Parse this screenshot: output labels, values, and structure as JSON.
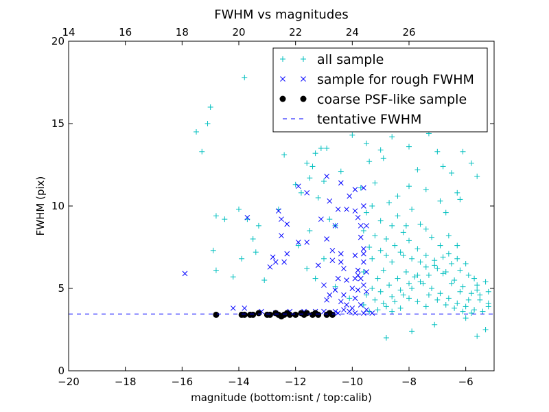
{
  "chart_data": {
    "type": "scatter",
    "title": "FWHM vs magnitudes",
    "xlabel": "magnitude (bottom:isnt / top:calib)",
    "ylabel": "FWHM (pix)",
    "xlim": [
      -20,
      -5
    ],
    "ylim": [
      0,
      20
    ],
    "x_ticks": [
      -20,
      -18,
      -16,
      -14,
      -12,
      -10,
      -8,
      -6
    ],
    "x_tick_labels": [
      "−20",
      "−18",
      "−16",
      "−14",
      "−12",
      "−10",
      "−8",
      "−6"
    ],
    "y_ticks": [
      0,
      5,
      10,
      15,
      20
    ],
    "y_tick_labels": [
      "0",
      "5",
      "10",
      "15",
      "20"
    ],
    "top_axis": {
      "offset": 34,
      "ticks": [
        14,
        16,
        18,
        20,
        22,
        24,
        26
      ],
      "tick_labels": [
        "14",
        "16",
        "18",
        "20",
        "22",
        "24",
        "26"
      ]
    },
    "grid": false,
    "legend_position": "top-right",
    "series": [
      {
        "name": "all sample",
        "marker": "+",
        "color": "#00bfbf",
        "points": [
          [
            -13.8,
            17.8
          ],
          [
            -15.0,
            16.0
          ],
          [
            -15.5,
            14.5
          ],
          [
            -15.1,
            15.0
          ],
          [
            -15.3,
            13.3
          ],
          [
            -14.8,
            9.4
          ],
          [
            -14.0,
            9.8
          ],
          [
            -14.5,
            9.2
          ],
          [
            -13.7,
            9.2
          ],
          [
            -13.3,
            8.8
          ],
          [
            -13.5,
            8.0
          ],
          [
            -14.9,
            7.3
          ],
          [
            -14.8,
            6.1
          ],
          [
            -13.9,
            6.8
          ],
          [
            -14.2,
            5.7
          ],
          [
            -13.1,
            5.5
          ],
          [
            -13.4,
            7.2
          ],
          [
            -12.6,
            9.8
          ],
          [
            -12.0,
            17.2
          ],
          [
            -12.4,
            15.6
          ],
          [
            -12.4,
            13.1
          ],
          [
            -11.6,
            12.6
          ],
          [
            -11.3,
            13.2
          ],
          [
            -11.1,
            13.5
          ],
          [
            -11.5,
            11.7
          ],
          [
            -11.4,
            12.4
          ],
          [
            -10.9,
            13.5
          ],
          [
            -10.8,
            17.7
          ],
          [
            -10.5,
            18.8
          ],
          [
            -10.3,
            17.8
          ],
          [
            -10.2,
            15.2
          ],
          [
            -10.0,
            14.3
          ],
          [
            -10.4,
            12.1
          ],
          [
            -11.0,
            11.5
          ],
          [
            -11.8,
            10.8
          ],
          [
            -12.0,
            11.3
          ],
          [
            -11.2,
            10.5
          ],
          [
            -10.8,
            9.2
          ],
          [
            -10.6,
            8.8
          ],
          [
            -11.5,
            8.5
          ],
          [
            -11.9,
            7.6
          ],
          [
            -11.6,
            6.2
          ],
          [
            -11.3,
            5.6
          ],
          [
            -11.0,
            6.8
          ],
          [
            -10.6,
            5.1
          ],
          [
            -10.1,
            4.4
          ],
          [
            -9.6,
            8.5
          ],
          [
            -9.4,
            12.7
          ],
          [
            -9.2,
            11.4
          ],
          [
            -9.0,
            13.4
          ],
          [
            -8.7,
            16.2
          ],
          [
            -8.5,
            18.5
          ],
          [
            -8.3,
            17.8
          ],
          [
            -8.1,
            15.7
          ],
          [
            -7.8,
            16.1
          ],
          [
            -7.5,
            15.4
          ],
          [
            -7.3,
            14.4
          ],
          [
            -7.0,
            13.3
          ],
          [
            -6.8,
            12.4
          ],
          [
            -6.5,
            12.0
          ],
          [
            -6.3,
            10.8
          ],
          [
            -6.1,
            13.3
          ],
          [
            -5.8,
            12.6
          ],
          [
            -5.6,
            11.8
          ],
          [
            -6.2,
            10.4
          ],
          [
            -6.7,
            9.6
          ],
          [
            -7.9,
            9.8
          ],
          [
            -8.7,
            10.2
          ],
          [
            -9.0,
            9.1
          ],
          [
            -9.3,
            10.0
          ],
          [
            -8.4,
            9.4
          ],
          [
            -8.0,
            11.2
          ],
          [
            -7.7,
            12.2
          ],
          [
            -8.9,
            12.9
          ],
          [
            -9.7,
            11.1
          ],
          [
            -9.5,
            9.6
          ],
          [
            -8.6,
            8.8
          ],
          [
            -8.2,
            8.4
          ],
          [
            -7.6,
            8.9
          ],
          [
            -7.2,
            8.1
          ],
          [
            -6.9,
            7.6
          ],
          [
            -6.6,
            7.1
          ],
          [
            -6.3,
            6.8
          ],
          [
            -6.0,
            6.5
          ],
          [
            -5.7,
            5.6
          ],
          [
            -5.5,
            4.6
          ],
          [
            -5.2,
            4.1
          ],
          [
            -5.3,
            5.4
          ],
          [
            -5.6,
            4.9
          ],
          [
            -5.9,
            4.3
          ],
          [
            -6.2,
            4.8
          ],
          [
            -6.5,
            5.3
          ],
          [
            -6.8,
            5.9
          ],
          [
            -7.1,
            6.4
          ],
          [
            -7.4,
            7.0
          ],
          [
            -7.7,
            7.4
          ],
          [
            -8.0,
            7.9
          ],
          [
            -8.3,
            7.2
          ],
          [
            -8.6,
            6.6
          ],
          [
            -8.9,
            6.1
          ],
          [
            -9.1,
            5.6
          ],
          [
            -9.3,
            5.0
          ],
          [
            -9.5,
            4.6
          ],
          [
            -9.6,
            4.0
          ],
          [
            -9.4,
            3.6
          ],
          [
            -9.1,
            3.7
          ],
          [
            -8.8,
            3.9
          ],
          [
            -8.5,
            4.2
          ],
          [
            -8.2,
            4.6
          ],
          [
            -7.9,
            5.0
          ],
          [
            -7.6,
            5.4
          ],
          [
            -7.3,
            5.8
          ],
          [
            -7.0,
            6.2
          ],
          [
            -6.7,
            6.0
          ],
          [
            -6.4,
            5.5
          ],
          [
            -6.1,
            5.1
          ],
          [
            -5.8,
            4.7
          ],
          [
            -5.5,
            4.3
          ],
          [
            -5.2,
            3.9
          ],
          [
            -5.4,
            3.6
          ],
          [
            -5.7,
            3.7
          ],
          [
            -6.0,
            3.9
          ],
          [
            -6.3,
            4.1
          ],
          [
            -6.6,
            4.4
          ],
          [
            -6.9,
            4.7
          ],
          [
            -7.2,
            5.0
          ],
          [
            -7.5,
            5.3
          ],
          [
            -7.8,
            5.7
          ],
          [
            -8.1,
            6.0
          ],
          [
            -8.4,
            5.6
          ],
          [
            -8.7,
            5.2
          ],
          [
            -9.0,
            4.8
          ],
          [
            -9.2,
            4.3
          ],
          [
            -8.9,
            4.1
          ],
          [
            -8.6,
            4.5
          ],
          [
            -8.3,
            4.9
          ],
          [
            -8.0,
            5.3
          ],
          [
            -7.7,
            5.8
          ],
          [
            -7.4,
            6.3
          ],
          [
            -7.1,
            6.7
          ],
          [
            -6.8,
            6.9
          ],
          [
            -6.5,
            6.5
          ],
          [
            -6.2,
            6.1
          ],
          [
            -5.9,
            5.8
          ],
          [
            -5.6,
            5.2
          ],
          [
            -7.9,
            6.8
          ],
          [
            -8.2,
            7.0
          ],
          [
            -7.6,
            6.6
          ],
          [
            -7.3,
            4.6
          ],
          [
            -7.0,
            4.3
          ],
          [
            -6.7,
            4.0
          ],
          [
            -6.4,
            3.8
          ],
          [
            -6.1,
            3.6
          ],
          [
            -5.8,
            3.5
          ],
          [
            -7.4,
            3.9
          ],
          [
            -7.7,
            4.2
          ],
          [
            -8.0,
            4.4
          ],
          [
            -8.3,
            3.8
          ],
          [
            -8.6,
            3.6
          ],
          [
            -9.3,
            6.8
          ],
          [
            -9.0,
            7.3
          ],
          [
            -8.8,
            8.0
          ],
          [
            -8.5,
            7.6
          ],
          [
            -7.1,
            2.8
          ],
          [
            -7.9,
            2.4
          ],
          [
            -8.8,
            2.0
          ],
          [
            -5.6,
            2.1
          ],
          [
            -5.3,
            2.5
          ],
          [
            -6.0,
            3.2
          ],
          [
            -5.2,
            4.8
          ],
          [
            -6.3,
            7.6
          ],
          [
            -6.6,
            8.2
          ],
          [
            -7.4,
            8.6
          ],
          [
            -8.1,
            8.8
          ],
          [
            -8.8,
            7.0
          ],
          [
            -9.2,
            8.2
          ],
          [
            -9.6,
            6.0
          ],
          [
            -9.4,
            7.5
          ],
          [
            -8.4,
            10.6
          ],
          [
            -8.0,
            13.6
          ],
          [
            -9.5,
            13.8
          ],
          [
            -9.8,
            15.0
          ],
          [
            -8.6,
            14.2
          ],
          [
            -7.4,
            11.0
          ],
          [
            -6.9,
            10.3
          ]
        ]
      },
      {
        "name": "sample for rough FWHM",
        "marker": "x",
        "color": "#0000ff",
        "points": [
          [
            -15.9,
            5.9
          ],
          [
            -13.7,
            9.3
          ],
          [
            -12.6,
            9.7
          ],
          [
            -12.5,
            9.2
          ],
          [
            -12.3,
            8.9
          ],
          [
            -12.5,
            8.2
          ],
          [
            -12.8,
            6.9
          ],
          [
            -12.7,
            6.6
          ],
          [
            -12.9,
            6.3
          ],
          [
            -12.4,
            6.6
          ],
          [
            -12.3,
            7.1
          ],
          [
            -11.9,
            7.8
          ],
          [
            -11.6,
            7.8
          ],
          [
            -11.9,
            11.2
          ],
          [
            -11.6,
            10.8
          ],
          [
            -11.1,
            9.2
          ],
          [
            -11.2,
            6.4
          ],
          [
            -10.9,
            11.8
          ],
          [
            -10.8,
            10.3
          ],
          [
            -10.4,
            11.4
          ],
          [
            -10.5,
            9.8
          ],
          [
            -10.6,
            8.8
          ],
          [
            -10.9,
            8.0
          ],
          [
            -10.7,
            7.3
          ],
          [
            -10.4,
            7.1
          ],
          [
            -10.7,
            6.7
          ],
          [
            -10.3,
            6.2
          ],
          [
            -10.5,
            5.6
          ],
          [
            -10.2,
            5.5
          ],
          [
            -10.6,
            4.9
          ],
          [
            -10.8,
            4.6
          ],
          [
            -11.0,
            5.2
          ],
          [
            -10.9,
            4.3
          ],
          [
            -10.4,
            4.2
          ],
          [
            -10.2,
            4.0
          ],
          [
            -10.3,
            3.7
          ],
          [
            -10.0,
            3.8
          ],
          [
            -9.9,
            4.4
          ],
          [
            -9.8,
            9.3
          ],
          [
            -9.7,
            8.8
          ],
          [
            -9.9,
            9.7
          ],
          [
            -9.7,
            8.1
          ],
          [
            -9.6,
            7.4
          ],
          [
            -9.9,
            7.0
          ],
          [
            -9.6,
            6.6
          ],
          [
            -9.5,
            6.0
          ],
          [
            -9.8,
            6.1
          ],
          [
            -9.7,
            5.6
          ],
          [
            -9.6,
            5.2
          ],
          [
            -9.5,
            4.8
          ],
          [
            -9.8,
            4.9
          ],
          [
            -9.9,
            5.6
          ],
          [
            -10.1,
            10.6
          ],
          [
            -10.2,
            9.8
          ],
          [
            -9.9,
            11.0
          ],
          [
            -9.6,
            11.1
          ],
          [
            -9.6,
            10.0
          ],
          [
            -9.5,
            8.8
          ],
          [
            -13.8,
            3.8
          ],
          [
            -14.2,
            3.8
          ],
          [
            -11.0,
            3.6
          ],
          [
            -10.6,
            3.6
          ],
          [
            -9.9,
            3.5
          ],
          [
            -9.6,
            3.5
          ],
          [
            -9.3,
            3.5
          ],
          [
            -10.5,
            3.5
          ],
          [
            -10.8,
            3.5
          ],
          [
            -11.3,
            3.6
          ],
          [
            -11.7,
            3.6
          ],
          [
            -12.2,
            3.6
          ],
          [
            -12.7,
            3.5
          ],
          [
            -13.2,
            3.6
          ],
          [
            -9.5,
            3.7
          ],
          [
            -10.1,
            3.6
          ],
          [
            -9.7,
            4.0
          ],
          [
            -10.0,
            5.0
          ],
          [
            -10.3,
            4.6
          ],
          [
            -9.8,
            5.8
          ],
          [
            -10.4,
            6.6
          ],
          [
            -9.6,
            7.1
          ]
        ]
      },
      {
        "name": "coarse PSF-like sample",
        "marker": "o",
        "color": "#000000",
        "points": [
          [
            -14.8,
            3.4
          ],
          [
            -13.9,
            3.4
          ],
          [
            -13.8,
            3.4
          ],
          [
            -13.6,
            3.4
          ],
          [
            -13.5,
            3.4
          ],
          [
            -13.3,
            3.5
          ],
          [
            -13.0,
            3.4
          ],
          [
            -12.9,
            3.4
          ],
          [
            -12.7,
            3.5
          ],
          [
            -12.6,
            3.4
          ],
          [
            -12.5,
            3.3
          ],
          [
            -12.4,
            3.4
          ],
          [
            -12.3,
            3.5
          ],
          [
            -12.2,
            3.4
          ],
          [
            -12.0,
            3.4
          ],
          [
            -11.8,
            3.5
          ],
          [
            -11.7,
            3.4
          ],
          [
            -11.6,
            3.5
          ],
          [
            -11.4,
            3.4
          ],
          [
            -11.3,
            3.5
          ],
          [
            -11.2,
            3.4
          ],
          [
            -10.9,
            3.4
          ],
          [
            -10.8,
            3.5
          ],
          [
            -10.7,
            3.4
          ]
        ]
      },
      {
        "name": "tentative FWHM",
        "marker": "dashed-line",
        "color": "#0000ff",
        "y": 3.45
      }
    ]
  }
}
